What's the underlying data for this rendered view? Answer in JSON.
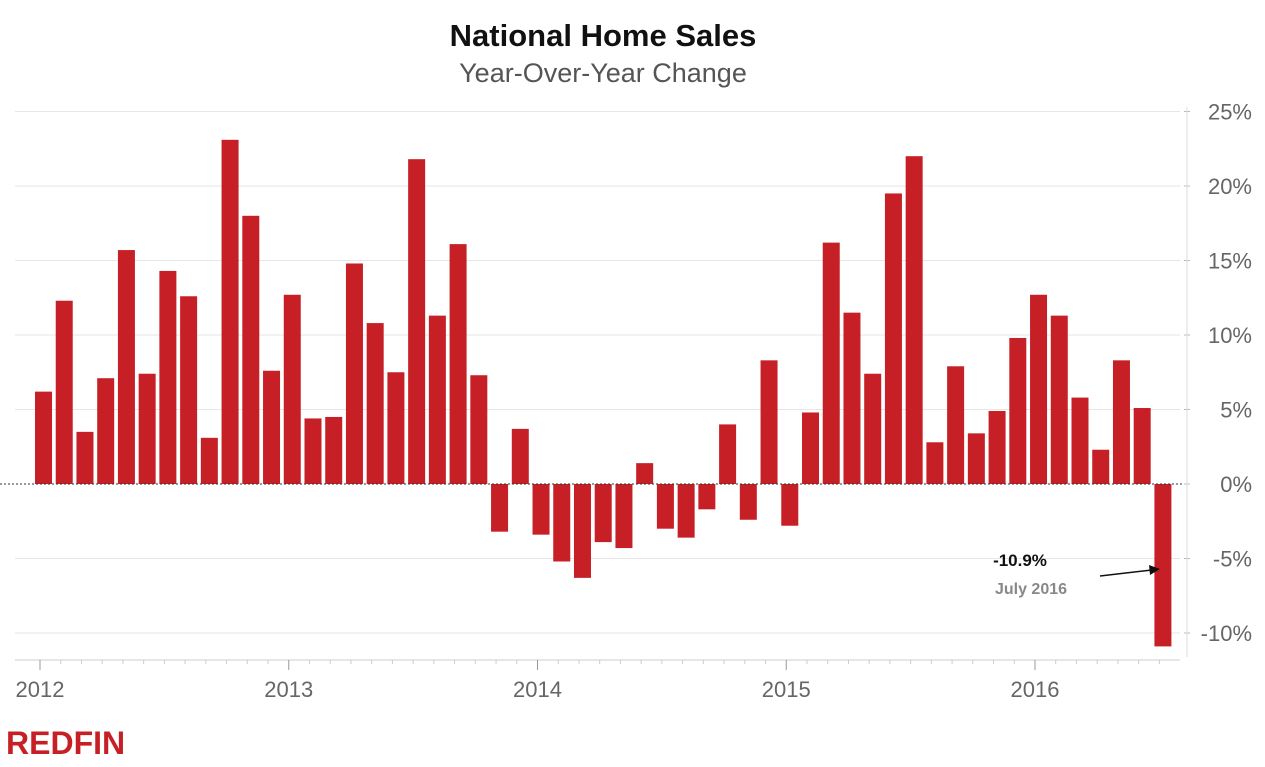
{
  "chart_data": {
    "type": "bar",
    "title": "National Home Sales",
    "subtitle": "Year-Over-Year Change",
    "xlabel": "",
    "ylabel": "",
    "ylim": [
      -11,
      25
    ],
    "y_ticks": [
      25,
      20,
      15,
      10,
      5,
      0,
      -5,
      -10
    ],
    "y_tick_labels": [
      "25%",
      "20%",
      "15%",
      "10%",
      "5%",
      "0%",
      "-5%",
      "-10%"
    ],
    "x_tick_labels": [
      "2012",
      "2013",
      "2014",
      "2015",
      "2016"
    ],
    "y_axis_side": "right",
    "grid": true,
    "start": "2012-01",
    "bar_color": "#c62026",
    "values": [
      6.2,
      12.3,
      3.5,
      7.1,
      15.7,
      7.4,
      14.3,
      12.6,
      3.1,
      23.1,
      18.0,
      7.6,
      12.7,
      4.4,
      4.5,
      14.8,
      10.8,
      7.5,
      21.8,
      11.3,
      16.1,
      7.3,
      -3.2,
      3.7,
      -3.4,
      -5.2,
      -6.3,
      -3.9,
      -4.3,
      1.4,
      -3.0,
      -3.6,
      -1.7,
      4.0,
      -2.4,
      8.3,
      -2.8,
      4.8,
      16.2,
      11.5,
      7.4,
      19.5,
      22.0,
      2.8,
      7.9,
      3.4,
      4.9,
      9.8,
      12.7,
      11.3,
      5.8,
      2.3,
      8.3,
      5.1,
      -10.9
    ]
  },
  "annotation": {
    "value": "-10.9%",
    "label": "July 2016"
  },
  "brand": {
    "name": "REDFIN",
    "color": "#c62026"
  }
}
